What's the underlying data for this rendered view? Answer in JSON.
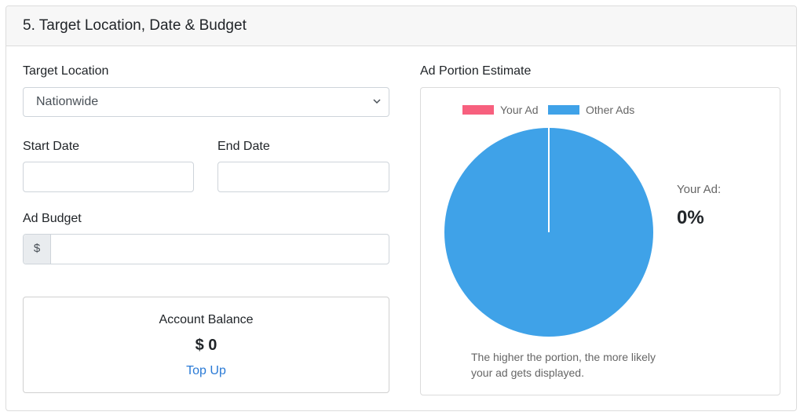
{
  "section": {
    "title": "5. Target Location, Date & Budget"
  },
  "location": {
    "label": "Target Location",
    "selected": "Nationwide"
  },
  "dates": {
    "start_label": "Start Date",
    "end_label": "End Date",
    "start_value": "",
    "end_value": ""
  },
  "budget": {
    "label": "Ad Budget",
    "prefix": "$",
    "value": ""
  },
  "balance": {
    "title": "Account Balance",
    "amount": "$ 0",
    "link": "Top Up"
  },
  "estimate": {
    "title": "Ad Portion Estimate",
    "your_ad_label": "Your Ad:",
    "your_ad_value": "0%",
    "caption": "The higher the portion, the more likely your ad gets displayed."
  },
  "chart_data": {
    "type": "pie",
    "categories": [
      "Your Ad",
      "Other Ads"
    ],
    "values": [
      0,
      100
    ],
    "colors": [
      "#f7607e",
      "#3fa2e8"
    ],
    "legend": "top"
  },
  "icons": {
    "select_chevron": "chevron-down-icon"
  }
}
